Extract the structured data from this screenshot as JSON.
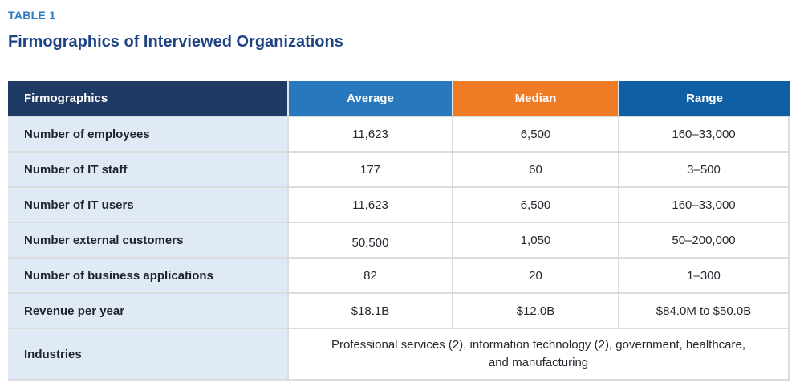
{
  "page": {
    "table_label": "TABLE 1",
    "title": "Firmographics of Interviewed Organizations"
  },
  "colors": {
    "table_label": "#2B7AC0",
    "title": "#1E4383",
    "header_firmographics_bg": "#1F3A63",
    "header_average_bg": "#2878BE",
    "header_median_bg": "#F07B25",
    "header_range_bg": "#0E5FA4",
    "label_column_bg": "#DFEAF6",
    "border": "#DCDCDC"
  },
  "table": {
    "columns": {
      "firmographics": "Firmographics",
      "average": "Average",
      "median": "Median",
      "range": "Range"
    },
    "rows": [
      {
        "label": "Number of employees",
        "average": "11,623",
        "median": "6,500",
        "range": "160–33,000"
      },
      {
        "label": "Number of IT staff",
        "average": "177",
        "median": "60",
        "range": "3–500"
      },
      {
        "label": "Number of IT users",
        "average": "11,623",
        "median": "6,500",
        "range": "160–33,000"
      },
      {
        "label": "Number external customers",
        "average": "50,500",
        "median": "1,050",
        "range": "50–200,000"
      },
      {
        "label": "Number of business applications",
        "average": "82",
        "median": "20",
        "range": "1–300"
      },
      {
        "label": "Revenue per year",
        "average": "$18.1B",
        "median": "$12.0B",
        "range": "$84.0M to $50.0B"
      }
    ],
    "industries_row": {
      "label": "Industries",
      "value": "Professional services (2), information technology (2), government, healthcare, and manufacturing"
    }
  }
}
